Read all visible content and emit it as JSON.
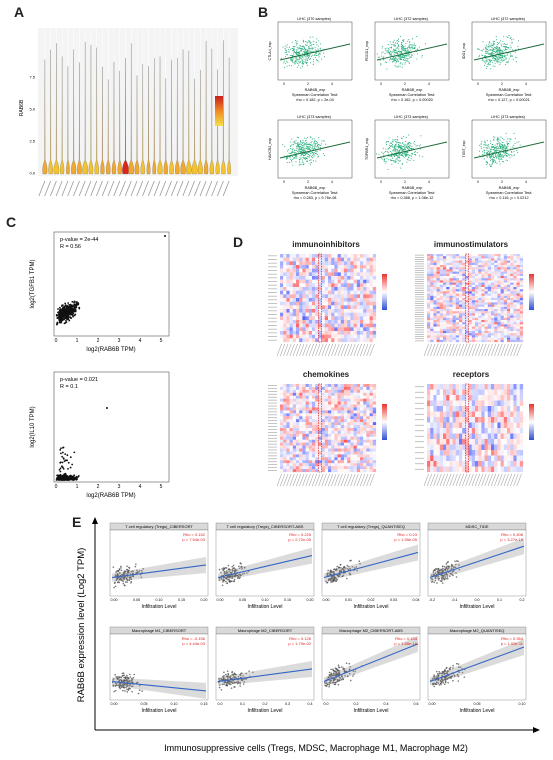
{
  "panels": {
    "a": {
      "letter": "A",
      "ylabel": "RAB6B",
      "yticks": [
        "0.0",
        "2.5",
        "5.0",
        "7.5"
      ]
    },
    "b": {
      "letter": "B",
      "plots": [
        {
          "title": "LIHC (370 samples)",
          "ylabel": "CTLA4_exp",
          "xlabel": "RAB6B_exp",
          "test": "Spearman Correlation Test:",
          "stat": "rho = 0.182, p = 2e-04"
        },
        {
          "title": "LIHC (372 samples)",
          "ylabel": "PDCD1_exp",
          "xlabel": "RAB6B_exp",
          "test": "Spearman Correlation Test:",
          "stat": "rho = 0.162, p = 0.00020"
        },
        {
          "title": "LIHC (372 samples)",
          "ylabel": "IDO1_exp",
          "xlabel": "RAB6B_exp",
          "test": "Spearman Correlation Test:",
          "stat": "rho = 0.127, p = 0.00021"
        },
        {
          "title": "LIHC (373 samples)",
          "ylabel": "HAVCR2_exp",
          "xlabel": "RAB6B_exp",
          "test": "Spearman Correlation Test:",
          "stat": "rho = 0.283, p = 9.76e-08"
        },
        {
          "title": "LIHC (373 samples)",
          "ylabel": "TGFBR1_exp",
          "xlabel": "RAB6B_exp",
          "test": "Spearman Correlation Test:",
          "stat": "rho = 0.388, p = 1.08e-12"
        },
        {
          "title": "LIHC (373 samples)",
          "ylabel": "TIGIT_exp",
          "xlabel": "RAB6B_exp",
          "test": "Spearman Correlation Test:",
          "stat": "rho = 0.116, p = 0.0212"
        }
      ]
    },
    "c": {
      "letter": "C",
      "top": {
        "pvalue": "p-value = 2e-44",
        "r": "R = 0.56",
        "ylabel": "log2(TGFB1 TPM)",
        "xlabel": "log2(RAB6B TPM)"
      },
      "bottom": {
        "pvalue": "p-value = 0.021",
        "r": "R = 0.1",
        "ylabel": "log2(IL10 TPM)",
        "xlabel": "log2(RAB6B TPM)"
      },
      "xticks": [
        "0",
        "1",
        "2",
        "3",
        "4",
        "5"
      ]
    },
    "d": {
      "letter": "D",
      "titles": {
        "immunoinhibitors": "immunoinhibitors",
        "immunostimulators": "immunostimulators",
        "chemokines": "chemokines",
        "receptors": "receptors"
      }
    },
    "e": {
      "letter": "E",
      "ylabel": "RAB6B expression level (Log2 TPM)",
      "xlabel": "Immunosuppressive cells (Tregs, MDSC, Macrophage M1, Macrophage M2)",
      "facets": [
        {
          "title": "T cell regulatory (Tregs)_CIBERSORT",
          "rho": "Rho = 0.152",
          "p": "p = 7.54e-03",
          "xlabel": "Infiltration Level",
          "xticks": [
            "0.00",
            "0.05",
            "0.10",
            "0.15",
            "0.20"
          ]
        },
        {
          "title": "T cell regulatory (Tregs)_CIBERSORT-ABS",
          "rho": "Rho = 0.225",
          "p": "p = 2.72e-05",
          "xlabel": "Infiltration Level",
          "xticks": [
            "0.00",
            "0.05",
            "0.10",
            "0.15",
            "0.20"
          ]
        },
        {
          "title": "T cell regulatory (Tregs)_QUANTISEQ",
          "rho": "Rho = 0.23",
          "p": "p = 1.55e-05",
          "xlabel": "Infiltration Level",
          "xticks": [
            "0.00",
            "0.01",
            "0.02",
            "0.03",
            "0.04"
          ]
        },
        {
          "title": "MDSC_TIDE",
          "rho": "Rho = 0.408",
          "p": "p = 3.27e-15",
          "xlabel": "Infiltration Level",
          "xticks": [
            "-0.2",
            "-0.1",
            "0.0",
            "0.1",
            "0.2"
          ]
        },
        {
          "title": "Macrophage M1_CIBERSORT",
          "rho": "Rho = -0.156",
          "p": "p = 4.44e-03",
          "xlabel": "Infiltration Level",
          "xticks": [
            "0.00",
            "0.05",
            "0.10",
            "0.15"
          ]
        },
        {
          "title": "Macrophage M2_CIBERSORT",
          "rho": "Rho = 0.126",
          "p": "p = 1.79e-02",
          "xlabel": "Infiltration Level",
          "xticks": [
            "0.0",
            "0.1",
            "0.2",
            "0.3",
            "0.4"
          ]
        },
        {
          "title": "Macrophage M2_CIBERSORT-ABS",
          "rho": "Rho = 0.433",
          "p": "p = 1.88e-16",
          "xlabel": "Infiltration Level",
          "xticks": [
            "0.0",
            "0.2",
            "0.4",
            "0.6"
          ]
        },
        {
          "title": "Macrophage M2_QUANTISEQ",
          "rho": "Rho = 0.354",
          "p": "p = 1.02e-11",
          "xlabel": "Infiltration Level",
          "xticks": [
            "0.00",
            "0.05",
            "0.10"
          ]
        }
      ]
    }
  },
  "colors": {
    "violin_peak": "#d7261e",
    "violin_fill": "#f2c230",
    "scatter_green": "#2bb07f",
    "fit_line_green": "#1e6b3a",
    "fit_blue": "#3465c7",
    "heat_red": "#e8342f",
    "heat_blue": "#2f4fd3",
    "dashed_red": "#e02020",
    "stat_red": "#e02020"
  }
}
